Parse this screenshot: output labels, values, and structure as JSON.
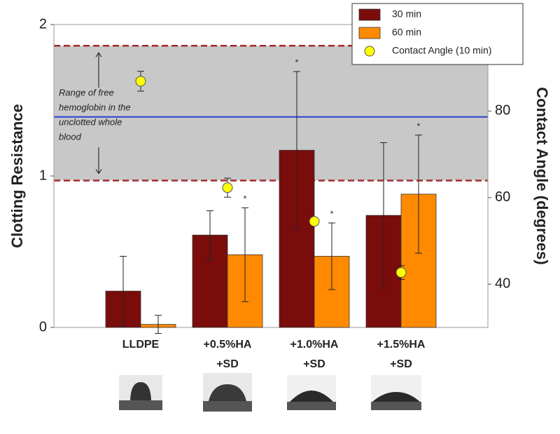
{
  "chart_data": {
    "type": "bar",
    "y_label": "Clotting Resistance",
    "y2_label": "Contact Angle (degrees)",
    "categories": [
      [
        "LLDPE"
      ],
      [
        "+0.5%HA",
        "+SD"
      ],
      [
        "+1.0%HA",
        "+SD"
      ],
      [
        "+1.5%HA",
        "+SD"
      ]
    ],
    "series": [
      {
        "name": "30 min",
        "color": "#7b0c0c",
        "values": [
          0.24,
          0.61,
          1.17,
          0.74
        ],
        "errors": [
          0.23,
          0.16,
          0.52,
          0.48
        ],
        "significance": [
          null,
          null,
          "*",
          null
        ]
      },
      {
        "name": "60 min",
        "color": "#ff8a00",
        "values": [
          0.02,
          0.48,
          0.47,
          0.88
        ],
        "errors": [
          0.06,
          0.31,
          0.22,
          0.39
        ],
        "significance": [
          null,
          "*",
          "*",
          "*"
        ]
      },
      {
        "name": "Contact Angle (10 min)",
        "color": "#ffff00",
        "axis": "y2",
        "values": [
          86.9,
          62.3,
          54.5,
          42.7
        ],
        "errors": [
          2.3,
          2.2,
          0,
          1.6
        ]
      }
    ],
    "ylim": [
      0,
      2
    ],
    "yticks": [
      0,
      1,
      2
    ],
    "y2lim": [
      30,
      100
    ],
    "y2ticks": [
      40,
      60,
      80
    ],
    "reference_band": {
      "range": [
        0.97,
        1.86
      ],
      "color": "#c8c8c8",
      "edge_color": "#a52a2a"
    },
    "reference_line": {
      "value": 1.39,
      "color": "#2b3fd6"
    },
    "annotation": [
      "Range of free",
      "hemoglobin  in the",
      "unclotted whole",
      "blood"
    ]
  }
}
